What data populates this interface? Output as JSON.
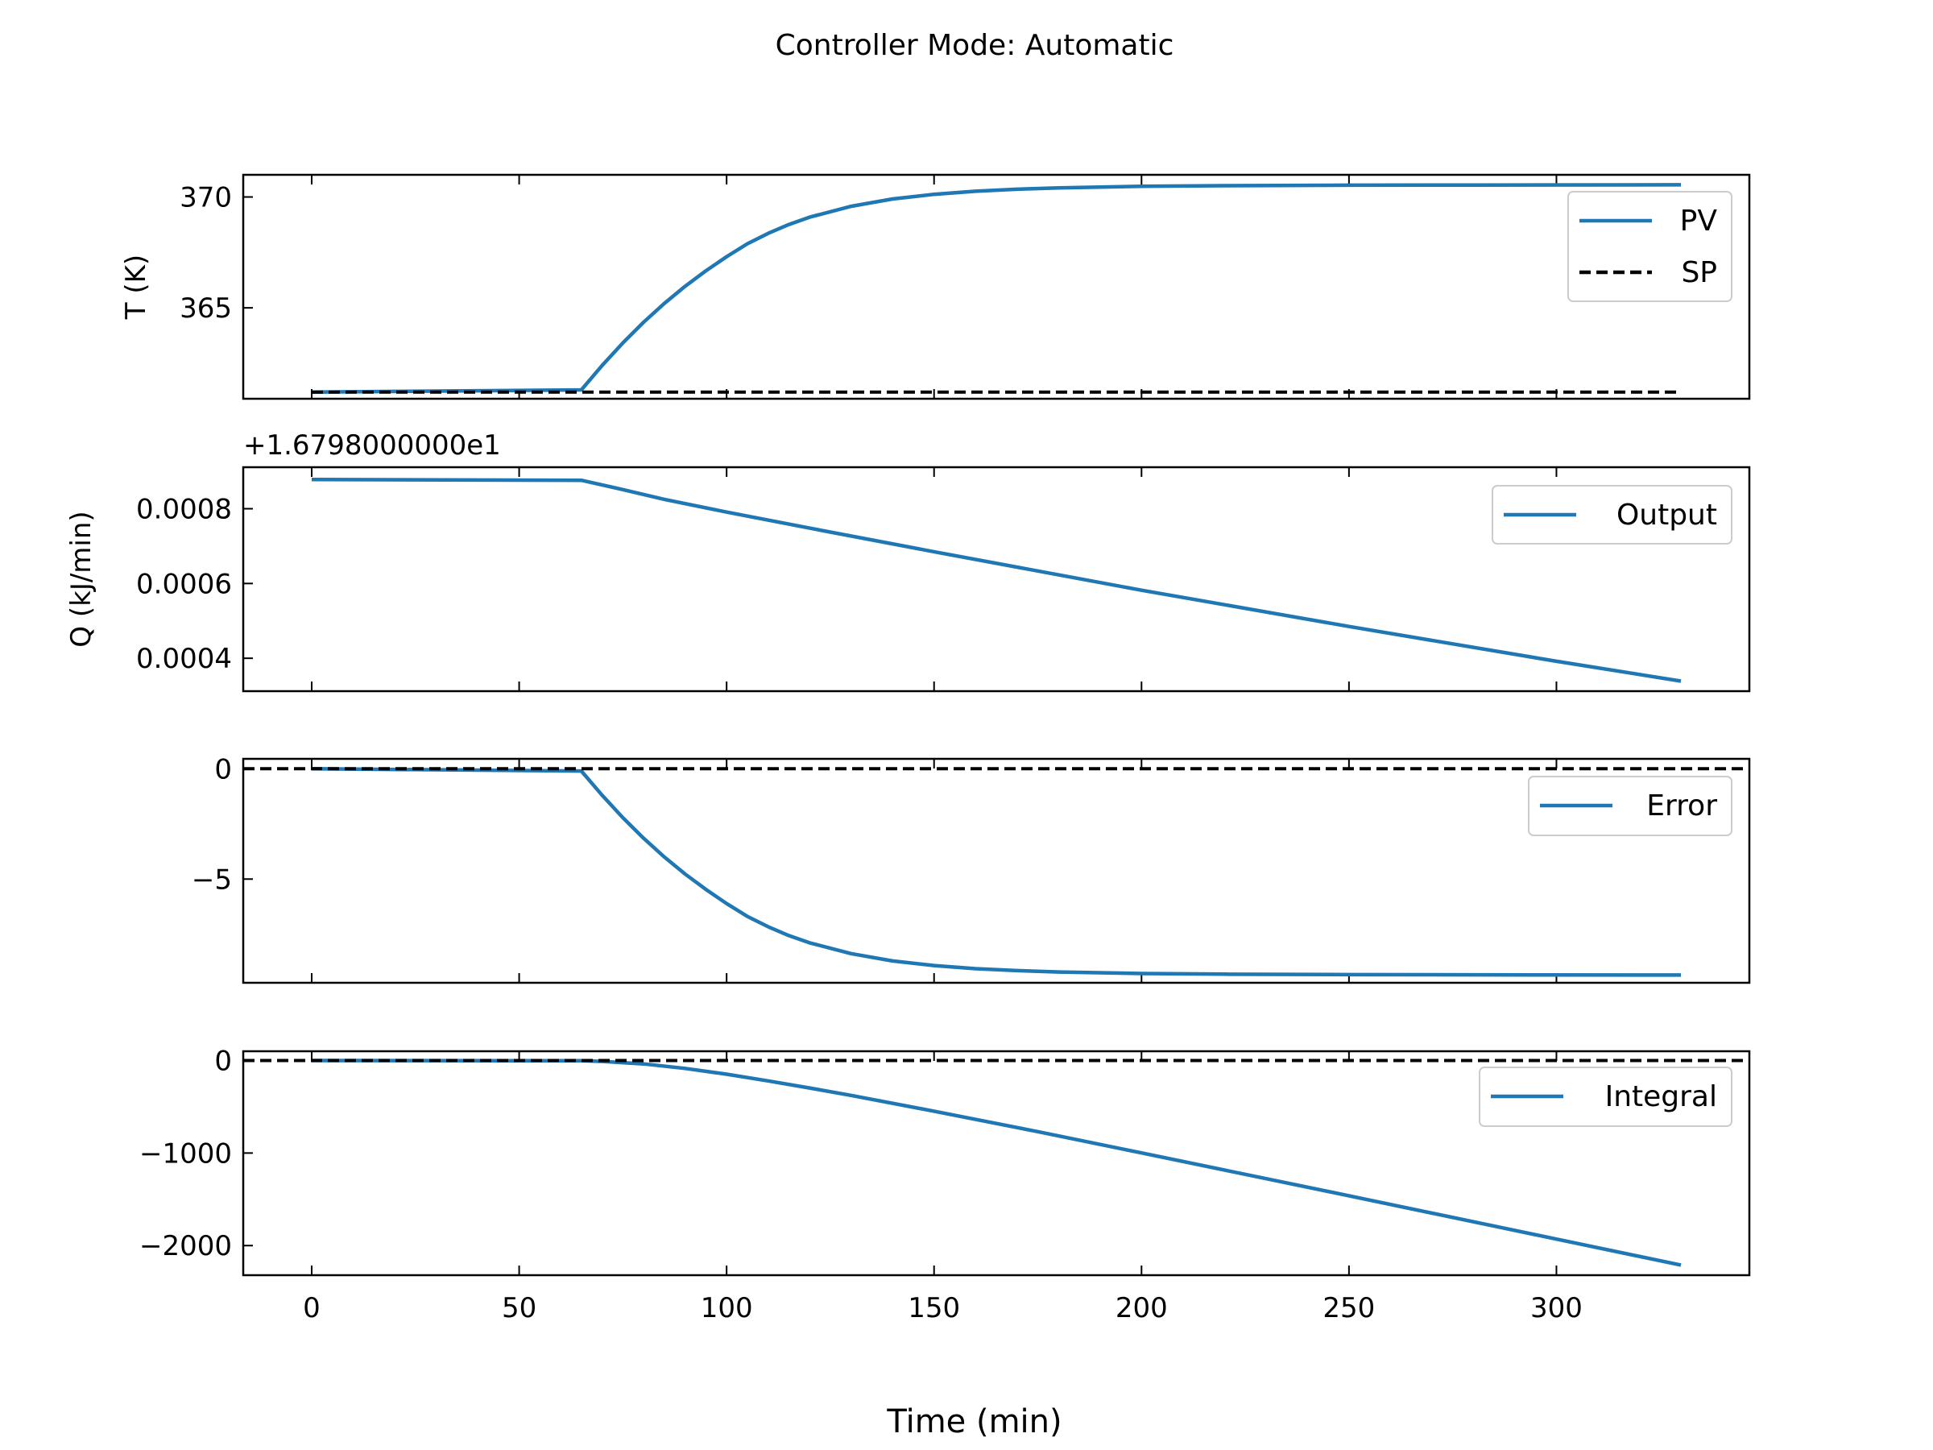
{
  "figure": {
    "title": "Controller Mode: Automatic",
    "xlabel": "Time (min)"
  },
  "colors": {
    "series": "#1f77b4",
    "reference": "#000000",
    "axes": "#000000",
    "legend_border": "#cccccc"
  },
  "chart_data": [
    {
      "type": "line",
      "ylabel": "T (K)",
      "offset_text": "",
      "xlim": [
        -16.5,
        346.5
      ],
      "ylim": [
        360.9,
        371.0
      ],
      "xticks": [
        0,
        50,
        100,
        150,
        200,
        250,
        300
      ],
      "yticks": [
        365,
        370
      ],
      "ytick_labels": [
        "365",
        "370"
      ],
      "show_xtick_labels": false,
      "legend_position": "upper right",
      "series": [
        {
          "name": "PV",
          "style": "solid",
          "x": [
            0,
            65,
            70,
            75,
            80,
            85,
            90,
            95,
            100,
            105,
            110,
            115,
            120,
            130,
            140,
            150,
            160,
            170,
            180,
            200,
            220,
            250,
            280,
            330
          ],
          "y": [
            361.2,
            361.3,
            362.4,
            363.42,
            364.35,
            365.2,
            365.97,
            366.67,
            367.31,
            367.89,
            368.36,
            368.76,
            369.09,
            369.58,
            369.91,
            370.12,
            370.26,
            370.35,
            370.41,
            370.48,
            370.51,
            370.53,
            370.54,
            370.55
          ]
        },
        {
          "name": "SP",
          "style": "dashed",
          "x": [
            0,
            330
          ],
          "y": [
            361.2,
            361.2
          ]
        }
      ]
    },
    {
      "type": "line",
      "ylabel": "Q (kJ/min)",
      "offset_text": "+1.6798000000e1",
      "xlim": [
        -16.5,
        346.5
      ],
      "ylim": [
        0.000312,
        0.000911
      ],
      "xticks": [
        0,
        50,
        100,
        150,
        200,
        250,
        300
      ],
      "yticks": [
        0.0004,
        0.0006,
        0.0008
      ],
      "ytick_labels": [
        "0.0004",
        "0.0006",
        "0.0008"
      ],
      "show_xtick_labels": false,
      "legend_position": "upper right",
      "series": [
        {
          "name": "Output",
          "style": "solid",
          "x": [
            0,
            65,
            75,
            85,
            100,
            120,
            150,
            200,
            250,
            300,
            330
          ],
          "y": [
            0.000878,
            0.000876,
            0.000851,
            0.000825,
            0.000791,
            0.000748,
            0.000685,
            0.000582,
            0.000485,
            0.000392,
            0.000339
          ]
        }
      ]
    },
    {
      "type": "line",
      "ylabel": "",
      "offset_text": "",
      "xlim": [
        -16.5,
        346.5
      ],
      "ylim": [
        -9.7,
        0.45
      ],
      "xticks": [
        0,
        50,
        100,
        150,
        200,
        250,
        300
      ],
      "yticks": [
        -5,
        0
      ],
      "ytick_labels": [
        "−5",
        "0"
      ],
      "show_xtick_labels": false,
      "legend_position": "right",
      "series": [
        {
          "name": "Error",
          "style": "solid",
          "x": [
            0,
            65,
            70,
            75,
            80,
            85,
            90,
            95,
            100,
            105,
            110,
            115,
            120,
            130,
            140,
            150,
            160,
            170,
            180,
            200,
            220,
            250,
            280,
            330
          ],
          "y": [
            0,
            -0.1,
            -1.2,
            -2.22,
            -3.15,
            -4.0,
            -4.77,
            -5.47,
            -6.11,
            -6.69,
            -7.16,
            -7.56,
            -7.89,
            -8.38,
            -8.71,
            -8.92,
            -9.06,
            -9.15,
            -9.21,
            -9.28,
            -9.31,
            -9.33,
            -9.34,
            -9.35
          ]
        },
        {
          "name": "",
          "style": "dashed",
          "x": [
            -16.5,
            346.5
          ],
          "y": [
            0,
            0
          ]
        }
      ]
    },
    {
      "type": "line",
      "ylabel": "",
      "offset_text": "",
      "xlim": [
        -16.5,
        346.5
      ],
      "ylim": [
        -2320,
        100
      ],
      "xticks": [
        0,
        50,
        100,
        150,
        200,
        250,
        300
      ],
      "yticks": [
        -2000,
        -1000,
        0
      ],
      "ytick_labels": [
        "−2000",
        "−1000",
        "0"
      ],
      "show_xtick_labels": true,
      "xtick_labels": [
        "0",
        "50",
        "100",
        "150",
        "200",
        "250",
        "300"
      ],
      "legend_position": "right",
      "series": [
        {
          "name": "Integral",
          "style": "solid",
          "x": [
            0,
            65,
            70,
            80,
            90,
            100,
            110,
            120,
            130,
            150,
            175,
            200,
            250,
            300,
            330
          ],
          "y": [
            0,
            -3,
            -10,
            -37,
            -85,
            -148,
            -220,
            -297,
            -377,
            -548,
            -769,
            -999,
            -1462,
            -1930,
            -2210
          ]
        },
        {
          "name": "",
          "style": "dashed",
          "x": [
            -16.5,
            346.5
          ],
          "y": [
            0,
            0
          ]
        }
      ]
    }
  ]
}
